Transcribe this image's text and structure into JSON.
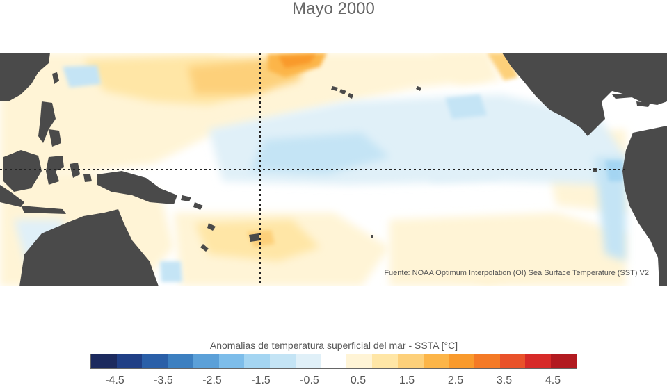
{
  "title": "Mayo 2000",
  "source": "Fuente: NOAA Optimum Interpolation (OI) Sea Surface Temperature (SST) V2",
  "colorbar": {
    "title": "Anomalias de temperatura superficial del mar - SSTA  [°C]",
    "colors": [
      "#1c2a5e",
      "#203f86",
      "#2a5fa8",
      "#3c7fc0",
      "#5ba0d8",
      "#7dbdea",
      "#a4d5f2",
      "#c4e4f5",
      "#e0f0f8",
      "#ffffff",
      "#fff4d6",
      "#ffe6a6",
      "#fdd07a",
      "#fcb548",
      "#f99a2c",
      "#f47a26",
      "#e9522a",
      "#d72a28",
      "#b21a20"
    ],
    "tick_labels": [
      "-4.5",
      "-3.5",
      "-2.5",
      "-1.5",
      "-0.5",
      "0.5",
      "1.5",
      "2.5",
      "3.5",
      "4.5"
    ],
    "tick_values": [
      -4.5,
      -3.5,
      -2.5,
      -1.5,
      -0.5,
      0.5,
      1.5,
      2.5,
      3.5,
      4.5
    ],
    "range": [
      -5,
      5
    ]
  },
  "map": {
    "land_color": "#4a4a4a",
    "ocean_color": "#ffffff",
    "reference_lines": [
      "equator",
      "date-line"
    ]
  }
}
